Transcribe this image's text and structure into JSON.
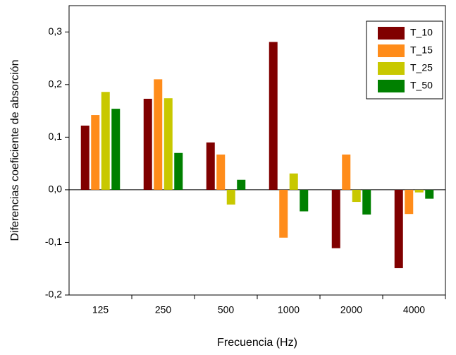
{
  "chart_data": {
    "type": "bar",
    "x_label": "Frecuencia (Hz)",
    "y_label": "Diferencias  coeficiente de absorción",
    "categories": [
      "125",
      "250",
      "500",
      "1000",
      "2000",
      "4000"
    ],
    "series": [
      {
        "name": "T_10",
        "color": "#800000",
        "values": [
          0.122,
          0.173,
          0.09,
          0.281,
          -0.111,
          -0.149
        ]
      },
      {
        "name": "T_15",
        "color": "#ff8c1a",
        "values": [
          0.142,
          0.21,
          0.067,
          -0.091,
          0.067,
          -0.046
        ]
      },
      {
        "name": "T_25",
        "color": "#c8c800",
        "values": [
          0.186,
          0.174,
          -0.028,
          0.031,
          -0.023,
          -0.005
        ]
      },
      {
        "name": "T_50",
        "color": "#008000",
        "values": [
          0.154,
          0.07,
          0.019,
          -0.041,
          -0.047,
          -0.017
        ]
      }
    ],
    "ylim": [
      -0.2,
      0.35
    ],
    "yticks": [
      {
        "value": -0.2,
        "label": "-0,2"
      },
      {
        "value": -0.1,
        "label": "-0,1"
      },
      {
        "value": 0,
        "label": "0,0"
      },
      {
        "value": 0.1,
        "label": "0,1"
      },
      {
        "value": 0.2,
        "label": "0,2"
      },
      {
        "value": 0.3,
        "label": "0,3"
      }
    ],
    "legend": "top-right"
  }
}
